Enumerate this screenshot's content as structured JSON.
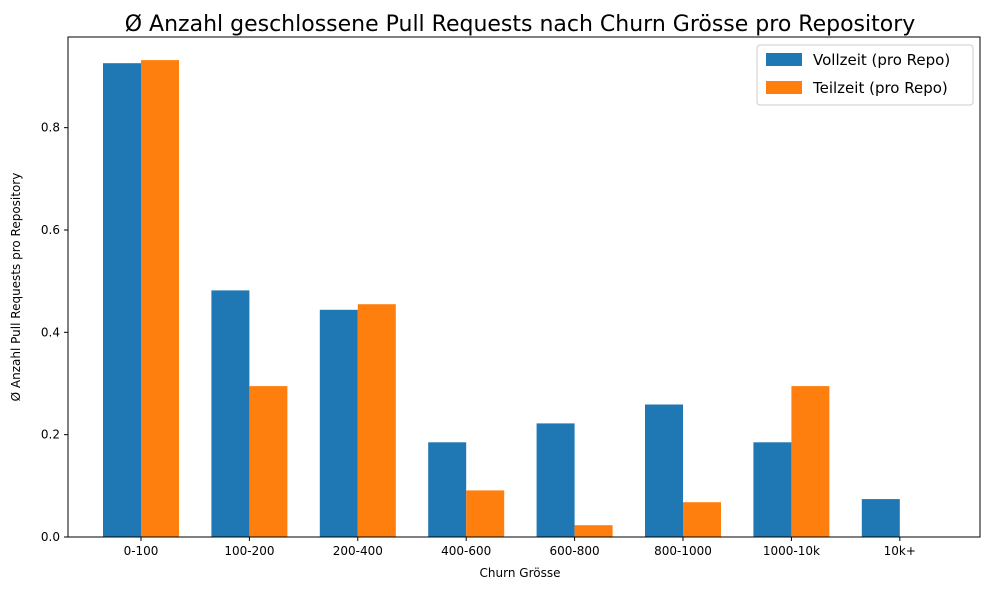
{
  "chart_data": {
    "type": "bar",
    "title": "Ø Anzahl geschlossene Pull Requests nach Churn Grösse pro Repository",
    "xlabel": "Churn Grösse",
    "ylabel": "Ø Anzahl Pull Requests pro Repository",
    "categories": [
      "0-100",
      "100-200",
      "200-400",
      "400-600",
      "600-800",
      "800-1000",
      "1000-10k",
      "10k+"
    ],
    "series": [
      {
        "name": "Vollzeit (pro Repo)",
        "color": "#1f77b4",
        "values": [
          0.926,
          0.482,
          0.444,
          0.185,
          0.222,
          0.259,
          0.185,
          0.074
        ]
      },
      {
        "name": "Teilzeit (pro Repo)",
        "color": "#ff7f0e",
        "values": [
          0.932,
          0.295,
          0.455,
          0.091,
          0.023,
          0.068,
          0.295,
          0.0
        ]
      }
    ],
    "ylim": [
      0,
      0.9772
    ],
    "yticks": [
      "0.0",
      "0.2",
      "0.4",
      "0.6",
      "0.8"
    ],
    "grid": false,
    "legend_position": "top-right"
  }
}
